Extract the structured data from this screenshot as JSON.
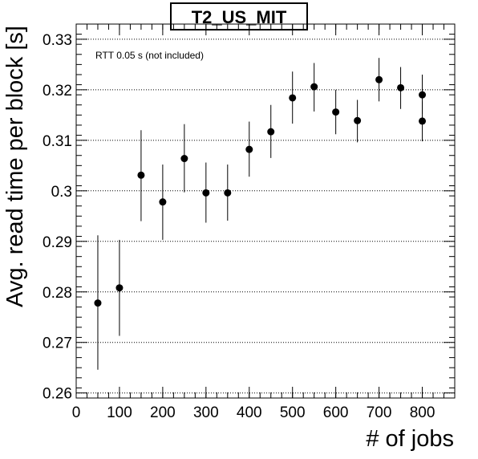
{
  "chart_data": {
    "type": "scatter",
    "title": "T2_US_MIT",
    "annotation": "RTT 0.05 s (not included)",
    "xlabel": "# of jobs",
    "ylabel": "Avg. read time per block [s]",
    "xlim": [
      0,
      875
    ],
    "ylim": [
      0.259,
      0.333
    ],
    "x_ticks": [
      0,
      100,
      200,
      300,
      400,
      500,
      600,
      700,
      800
    ],
    "y_ticks": [
      0.26,
      0.27,
      0.28,
      0.29,
      0.3,
      0.31,
      0.32,
      0.33
    ],
    "x_tick_labels": [
      "0",
      "100",
      "200",
      "300",
      "400",
      "500",
      "600",
      "700",
      "800"
    ],
    "y_tick_labels": [
      "0.26",
      "0.27",
      "0.28",
      "0.29",
      "0.3",
      "0.31",
      "0.32",
      "0.33"
    ],
    "grid": "horizontal",
    "legend": "none",
    "marker_color": "#000000",
    "points": [
      {
        "x": 50,
        "y": 0.2778,
        "err_low": 0.2646,
        "err_high": 0.2912
      },
      {
        "x": 100,
        "y": 0.2808,
        "err_low": 0.2713,
        "err_high": 0.2903
      },
      {
        "x": 150,
        "y": 0.3031,
        "err_low": 0.294,
        "err_high": 0.312
      },
      {
        "x": 200,
        "y": 0.2978,
        "err_low": 0.2903,
        "err_high": 0.3052
      },
      {
        "x": 250,
        "y": 0.3064,
        "err_low": 0.2997,
        "err_high": 0.3132
      },
      {
        "x": 300,
        "y": 0.2996,
        "err_low": 0.2937,
        "err_high": 0.3056
      },
      {
        "x": 350,
        "y": 0.2996,
        "err_low": 0.2941,
        "err_high": 0.3052
      },
      {
        "x": 400,
        "y": 0.3082,
        "err_low": 0.3028,
        "err_high": 0.3137
      },
      {
        "x": 450,
        "y": 0.3117,
        "err_low": 0.3065,
        "err_high": 0.317
      },
      {
        "x": 500,
        "y": 0.3184,
        "err_low": 0.3133,
        "err_high": 0.3236
      },
      {
        "x": 550,
        "y": 0.3206,
        "err_low": 0.3157,
        "err_high": 0.3253
      },
      {
        "x": 600,
        "y": 0.3156,
        "err_low": 0.3112,
        "err_high": 0.32
      },
      {
        "x": 650,
        "y": 0.3139,
        "err_low": 0.3096,
        "err_high": 0.318
      },
      {
        "x": 700,
        "y": 0.322,
        "err_low": 0.3177,
        "err_high": 0.3263
      },
      {
        "x": 750,
        "y": 0.3204,
        "err_low": 0.3162,
        "err_high": 0.3245
      },
      {
        "x": 800,
        "y": 0.319,
        "err_low": 0.3152,
        "err_high": 0.323
      },
      {
        "x": 800,
        "y": 0.3138,
        "err_low": 0.3098,
        "err_high": 0.3177
      }
    ]
  }
}
